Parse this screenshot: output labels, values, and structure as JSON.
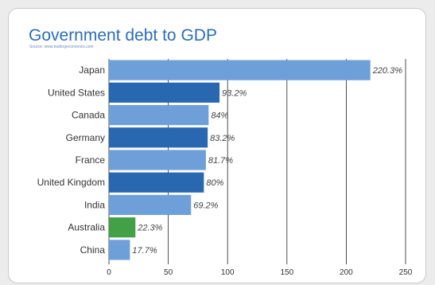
{
  "chart_data": {
    "type": "bar",
    "orientation": "horizontal",
    "title": "Government debt to GDP",
    "subtitle": "Source: www.tradingeconomics.com",
    "categories": [
      "Japan",
      "United States",
      "Canada",
      "Germany",
      "France",
      "United Kingdom",
      "India",
      "Australia",
      "China"
    ],
    "values": [
      220.3,
      93.2,
      84,
      83.2,
      81.7,
      80,
      69.2,
      22.3,
      17.7
    ],
    "value_labels": [
      "220.3%",
      "93.2%",
      "84%",
      "83.2%",
      "81.7%",
      "80%",
      "69.2%",
      "22.3%",
      "17.7%"
    ],
    "bar_colors": [
      "#6f9fd8",
      "#2a67b1",
      "#6f9fd8",
      "#2a67b1",
      "#6f9fd8",
      "#2a67b1",
      "#6f9fd8",
      "#43a047",
      "#6f9fd8"
    ],
    "xlim": [
      0,
      250
    ],
    "xticks": [
      0,
      50,
      100,
      150,
      200,
      250
    ],
    "xlabel": "",
    "ylabel": "",
    "grid": "vertical",
    "legend": "none"
  },
  "colors": {
    "title": "#2d6db6",
    "grid": "#222222"
  }
}
